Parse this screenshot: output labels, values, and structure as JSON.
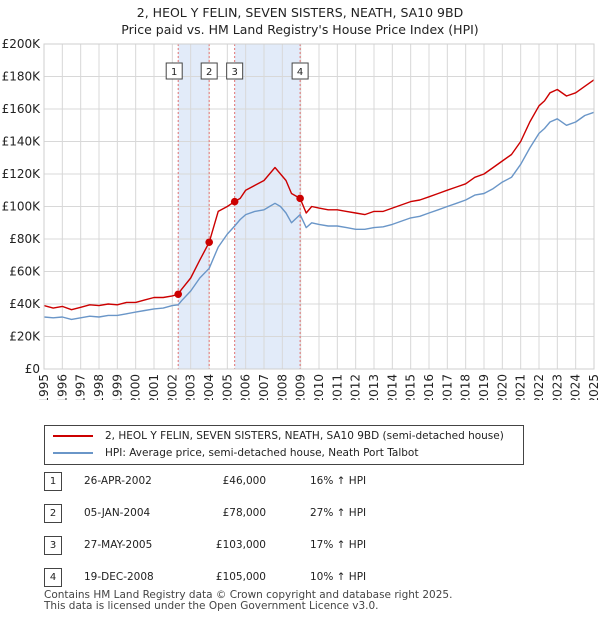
{
  "title_line1": "2, HEOL Y FELIN, SEVEN SISTERS, NEATH, SA10 9BD",
  "title_line2": "Price paid vs. HM Land Registry's House Price Index (HPI)",
  "colors": {
    "property": "#cc0000",
    "hpi": "#6a96c8",
    "shade": "#dde8f8",
    "vline": "#e07070"
  },
  "legend": {
    "property_label": "2, HEOL Y FELIN, SEVEN SISTERS, NEATH, SA10 9BD (semi-detached house)",
    "hpi_label": "HPI: Average price, semi-detached house, Neath Port Talbot"
  },
  "sales": [
    {
      "num": "1",
      "date": "26-APR-2002",
      "price": "£46,000",
      "hpi": "16% ↑ HPI"
    },
    {
      "num": "2",
      "date": "05-JAN-2004",
      "price": "£78,000",
      "hpi": "27% ↑ HPI"
    },
    {
      "num": "3",
      "date": "27-MAY-2005",
      "price": "£103,000",
      "hpi": "17% ↑ HPI"
    },
    {
      "num": "4",
      "date": "19-DEC-2008",
      "price": "£105,000",
      "hpi": "10% ↑ HPI"
    }
  ],
  "footer_line1": "Contains HM Land Registry data © Crown copyright and database right 2025.",
  "footer_line2": "This data is licensed under the Open Government Licence v3.0.",
  "chart_data": {
    "type": "line",
    "title": "2, HEOL Y FELIN, SEVEN SISTERS, NEATH, SA10 9BD - Price paid vs. HM Land Registry's House Price Index (HPI)",
    "xlabel": "",
    "ylabel": "",
    "xlim": [
      1995,
      2025
    ],
    "ylim": [
      0,
      200000
    ],
    "grid": true,
    "legend_position": "bottom",
    "x_ticks": [
      "1995",
      "1996",
      "1997",
      "1998",
      "1999",
      "2000",
      "2001",
      "2002",
      "2003",
      "2004",
      "2005",
      "2006",
      "2007",
      "2008",
      "2009",
      "2010",
      "2011",
      "2012",
      "2013",
      "2014",
      "2015",
      "2016",
      "2017",
      "2018",
      "2019",
      "2020",
      "2021",
      "2022",
      "2023",
      "2024",
      "2025"
    ],
    "y_ticks": [
      {
        "value": 0,
        "label": "£0"
      },
      {
        "value": 20000,
        "label": "£20K"
      },
      {
        "value": 40000,
        "label": "£40K"
      },
      {
        "value": 60000,
        "label": "£60K"
      },
      {
        "value": 80000,
        "label": "£80K"
      },
      {
        "value": 100000,
        "label": "£100K"
      },
      {
        "value": 120000,
        "label": "£120K"
      },
      {
        "value": 140000,
        "label": "£140K"
      },
      {
        "value": 160000,
        "label": "£160K"
      },
      {
        "value": 180000,
        "label": "£180K"
      },
      {
        "value": 200000,
        "label": "£200K"
      }
    ],
    "shaded_ranges": [
      [
        2002.32,
        2004.01
      ],
      [
        2005.4,
        2008.97
      ]
    ],
    "sale_markers": [
      {
        "label": "1",
        "x": 2002.32,
        "value": 46000
      },
      {
        "label": "2",
        "x": 2004.01,
        "value": 78000
      },
      {
        "label": "3",
        "x": 2005.4,
        "value": 103000
      },
      {
        "label": "4",
        "x": 2008.97,
        "value": 105000
      }
    ],
    "series": [
      {
        "name": "2, HEOL Y FELIN, SEVEN SISTERS, NEATH, SA10 9BD (semi-detached house)",
        "x": [
          1995,
          1995.5,
          1996,
          1996.5,
          1997,
          1997.5,
          1998,
          1998.5,
          1999,
          1999.5,
          2000,
          2000.5,
          2001,
          2001.5,
          2002,
          2002.32,
          2002.5,
          2003,
          2003.5,
          2004.01,
          2004.5,
          2005,
          2005.4,
          2005.7,
          2006,
          2006.5,
          2007,
          2007.3,
          2007.6,
          2007.9,
          2008.2,
          2008.5,
          2008.97,
          2009.3,
          2009.6,
          2010,
          2010.5,
          2011,
          2011.5,
          2012,
          2012.5,
          2013,
          2013.5,
          2014,
          2014.5,
          2015,
          2015.5,
          2016,
          2016.5,
          2017,
          2017.5,
          2018,
          2018.5,
          2019,
          2019.5,
          2020,
          2020.5,
          2021,
          2021.5,
          2022,
          2022.3,
          2022.6,
          2023,
          2023.5,
          2024,
          2024.5,
          2025
        ],
        "values": [
          39000,
          37500,
          38500,
          36500,
          38000,
          39500,
          39000,
          40000,
          39500,
          41000,
          41000,
          42500,
          44000,
          44000,
          45000,
          46000,
          49000,
          56000,
          67000,
          78000,
          97000,
          100000,
          103000,
          105000,
          110000,
          113000,
          116000,
          120000,
          124000,
          120000,
          116000,
          108000,
          105000,
          96000,
          100000,
          99000,
          98000,
          98000,
          97000,
          96000,
          95000,
          97000,
          97000,
          99000,
          101000,
          103000,
          104000,
          106000,
          108000,
          110000,
          112000,
          114000,
          118000,
          120000,
          124000,
          128000,
          132000,
          140000,
          152000,
          162000,
          165000,
          170000,
          172000,
          168000,
          170000,
          174000,
          178000
        ]
      },
      {
        "name": "HPI: Average price, semi-detached house, Neath Port Talbot",
        "x": [
          1995,
          1995.5,
          1996,
          1996.5,
          1997,
          1997.5,
          1998,
          1998.5,
          1999,
          1999.5,
          2000,
          2000.5,
          2001,
          2001.5,
          2002,
          2002.32,
          2002.5,
          2003,
          2003.5,
          2004.01,
          2004.5,
          2005,
          2005.4,
          2005.7,
          2006,
          2006.5,
          2007,
          2007.3,
          2007.6,
          2007.9,
          2008.2,
          2008.5,
          2008.97,
          2009.3,
          2009.6,
          2010,
          2010.5,
          2011,
          2011.5,
          2012,
          2012.5,
          2013,
          2013.5,
          2014,
          2014.5,
          2015,
          2015.5,
          2016,
          2016.5,
          2017,
          2017.5,
          2018,
          2018.5,
          2019,
          2019.5,
          2020,
          2020.5,
          2021,
          2021.5,
          2022,
          2022.3,
          2022.6,
          2023,
          2023.5,
          2024,
          2024.5,
          2025
        ],
        "values": [
          32000,
          31500,
          32000,
          30500,
          31500,
          32500,
          32000,
          33000,
          33000,
          34000,
          35000,
          36000,
          37000,
          37500,
          39000,
          39500,
          42000,
          48000,
          56000,
          62000,
          75000,
          83000,
          88000,
          92000,
          95000,
          97000,
          98000,
          100000,
          102000,
          100000,
          96000,
          90000,
          95000,
          87000,
          90000,
          89000,
          88000,
          88000,
          87000,
          86000,
          86000,
          87000,
          87500,
          89000,
          91000,
          93000,
          94000,
          96000,
          98000,
          100000,
          102000,
          104000,
          107000,
          108000,
          111000,
          115000,
          118000,
          126000,
          136000,
          145000,
          148000,
          152000,
          154000,
          150000,
          152000,
          156000,
          158000
        ]
      }
    ]
  }
}
